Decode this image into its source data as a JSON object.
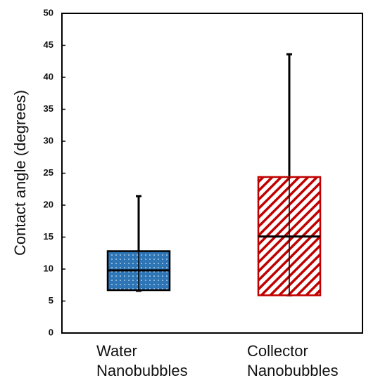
{
  "chart_data": {
    "type": "box",
    "y_label": "Contact angle (degrees)",
    "categories": [
      "Water Nanobubbles",
      "Collector Nanobubbles"
    ],
    "boxes": [
      {
        "min": 6.6,
        "q1": 6.7,
        "median": 9.8,
        "q3": 12.8,
        "max": 21.4,
        "color": "#2e75b6",
        "pattern": "dots"
      },
      {
        "min": 5.9,
        "q1": 5.9,
        "median": 15.1,
        "q3": 24.4,
        "max": 43.6,
        "color": "#c00000",
        "pattern": "hatch"
      }
    ],
    "ylim": [
      0,
      50
    ],
    "yticks": [
      0,
      5,
      10,
      15,
      20,
      25,
      30,
      35,
      40,
      45,
      50
    ],
    "grid": false
  }
}
